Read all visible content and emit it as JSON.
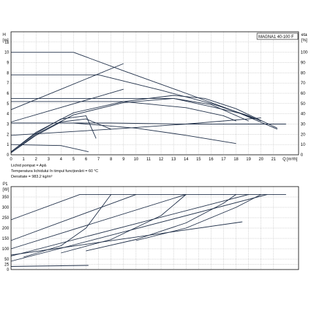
{
  "model_label": "MAGNA1 40-100 F",
  "info": {
    "line1": "Lichid pompat = Apă",
    "line2": "Temperatura lichidului în timpul funcționării = 60 °C",
    "line3": "Densitate = 983.2 kg/m³"
  },
  "chart_data": [
    {
      "type": "line",
      "title": "",
      "y_label": "H",
      "y_unit": "[m]",
      "y2_label": "eta",
      "y2_unit": "[%]",
      "x_label": "Q",
      "x_unit": "[m³/h]",
      "xlim": [
        0,
        23
      ],
      "ylim": [
        0,
        12
      ],
      "y2lim": [
        0,
        120
      ],
      "x_ticks": [
        0,
        1,
        2,
        3,
        4,
        5,
        6,
        7,
        8,
        9,
        10,
        11,
        12,
        13,
        14,
        15,
        16,
        17,
        18,
        19,
        20,
        21
      ],
      "y_ticks": [
        0,
        1,
        2,
        3,
        4,
        5,
        6,
        7,
        8,
        9,
        10,
        11
      ],
      "y2_ticks": [
        0,
        10,
        20,
        30,
        40,
        50,
        60,
        70,
        80,
        90,
        100
      ],
      "grid": true,
      "series": [
        {
          "values": [
            [
              0,
              10
            ],
            [
              5,
              10
            ],
            [
              9,
              8.2
            ],
            [
              14,
              6.0
            ],
            [
              18,
              4.2
            ],
            [
              21.3,
              2.5
            ]
          ]
        },
        {
          "values": [
            [
              0,
              7.8
            ],
            [
              7,
              7.8
            ],
            [
              12,
              6.3
            ],
            [
              16,
              5.0
            ],
            [
              19,
              3.8
            ],
            [
              20,
              3.3
            ]
          ]
        },
        {
          "values": [
            [
              0,
              5.5
            ],
            [
              13,
              5.5
            ],
            [
              16,
              4.7
            ],
            [
              18.5,
              4.0
            ],
            [
              19.5,
              3.5
            ]
          ]
        },
        {
          "values": [
            [
              0,
              5.2
            ],
            [
              9,
              5.2
            ],
            [
              14,
              4.6
            ],
            [
              17,
              3.8
            ],
            [
              18,
              3.3
            ]
          ]
        },
        {
          "values": [
            [
              0,
              3.1
            ],
            [
              5,
              3.1
            ],
            [
              10,
              2.6
            ],
            [
              14,
              1.9
            ],
            [
              18,
              1.1
            ]
          ]
        },
        {
          "values": [
            [
              0,
              1.0
            ],
            [
              4,
              0.9
            ],
            [
              6.2,
              0.3
            ]
          ]
        },
        {
          "values": [
            [
              0,
              0.3
            ],
            [
              2,
              2.2
            ],
            [
              5,
              4.1
            ],
            [
              9,
              5.2
            ],
            [
              13,
              5.8
            ],
            [
              15.5,
              5.5
            ],
            [
              18,
              4.5
            ],
            [
              21.3,
              2.6
            ]
          ]
        },
        {
          "values": [
            [
              0,
              0.2
            ],
            [
              2,
              2.0
            ],
            [
              5,
              3.9
            ],
            [
              9,
              5.1
            ],
            [
              13,
              5.5
            ],
            [
              16,
              4.9
            ],
            [
              19,
              3.3
            ]
          ]
        },
        {
          "values": [
            [
              0,
              0.2
            ],
            [
              2,
              1.9
            ],
            [
              4,
              3.2
            ],
            [
              6,
              3.5
            ],
            [
              7,
              3.0
            ],
            [
              8,
              2.5
            ]
          ]
        },
        {
          "values": [
            [
              0,
              0.3
            ],
            [
              2,
              2.1
            ],
            [
              4,
              3.5
            ],
            [
              6,
              3.8
            ],
            [
              6.8,
              1.6
            ]
          ]
        },
        {
          "values": [
            [
              0,
              3.1
            ],
            [
              8,
              3.1
            ],
            [
              14,
              3.0
            ],
            [
              22,
              3.0
            ]
          ]
        },
        {
          "values": [
            [
              0,
              1.9
            ],
            [
              8,
              2.5
            ],
            [
              14,
              3.0
            ],
            [
              20,
              3.6
            ]
          ]
        },
        {
          "values": [
            [
              0,
              4.4
            ],
            [
              9,
              8.9
            ]
          ]
        },
        {
          "values": [
            [
              0,
              3.2
            ],
            [
              9,
              6.4
            ]
          ]
        }
      ]
    },
    {
      "type": "line",
      "title": "",
      "y_label": "P1",
      "y_unit": "[W]",
      "xlim": [
        0,
        23
      ],
      "ylim": [
        0,
        400
      ],
      "y_ticks": [
        0,
        25,
        50,
        100,
        150,
        200,
        250,
        300,
        350
      ],
      "grid": true,
      "series": [
        {
          "values": [
            [
              0,
              240
            ],
            [
              5.5,
              362
            ],
            [
              22,
              362
            ]
          ]
        },
        {
          "values": [
            [
              0,
              140
            ],
            [
              10,
              362
            ]
          ]
        },
        {
          "values": [
            [
              0,
              100
            ],
            [
              14,
              362
            ]
          ]
        },
        {
          "values": [
            [
              0,
              65
            ],
            [
              19,
              362
            ]
          ]
        },
        {
          "values": [
            [
              0,
              70
            ],
            [
              18.5,
              230
            ]
          ]
        },
        {
          "values": [
            [
              0,
              40
            ],
            [
              20.5,
              362
            ]
          ]
        },
        {
          "values": [
            [
              0,
              15
            ],
            [
              6.2,
              20
            ]
          ]
        },
        {
          "values": [
            [
              1,
              60
            ],
            [
              4,
              115
            ],
            [
              6,
              200
            ],
            [
              8,
              362
            ]
          ]
        },
        {
          "values": [
            [
              4,
              80
            ],
            [
              8,
              145
            ],
            [
              12,
              260
            ],
            [
              14,
              362
            ]
          ]
        },
        {
          "values": [
            [
              6,
              90
            ],
            [
              10,
              145
            ],
            [
              14,
              225
            ],
            [
              17,
              320
            ],
            [
              18,
              362
            ]
          ]
        },
        {
          "values": [
            [
              10,
              140
            ],
            [
              14,
              200
            ],
            [
              18,
              300
            ],
            [
              20,
              362
            ]
          ]
        }
      ]
    }
  ]
}
